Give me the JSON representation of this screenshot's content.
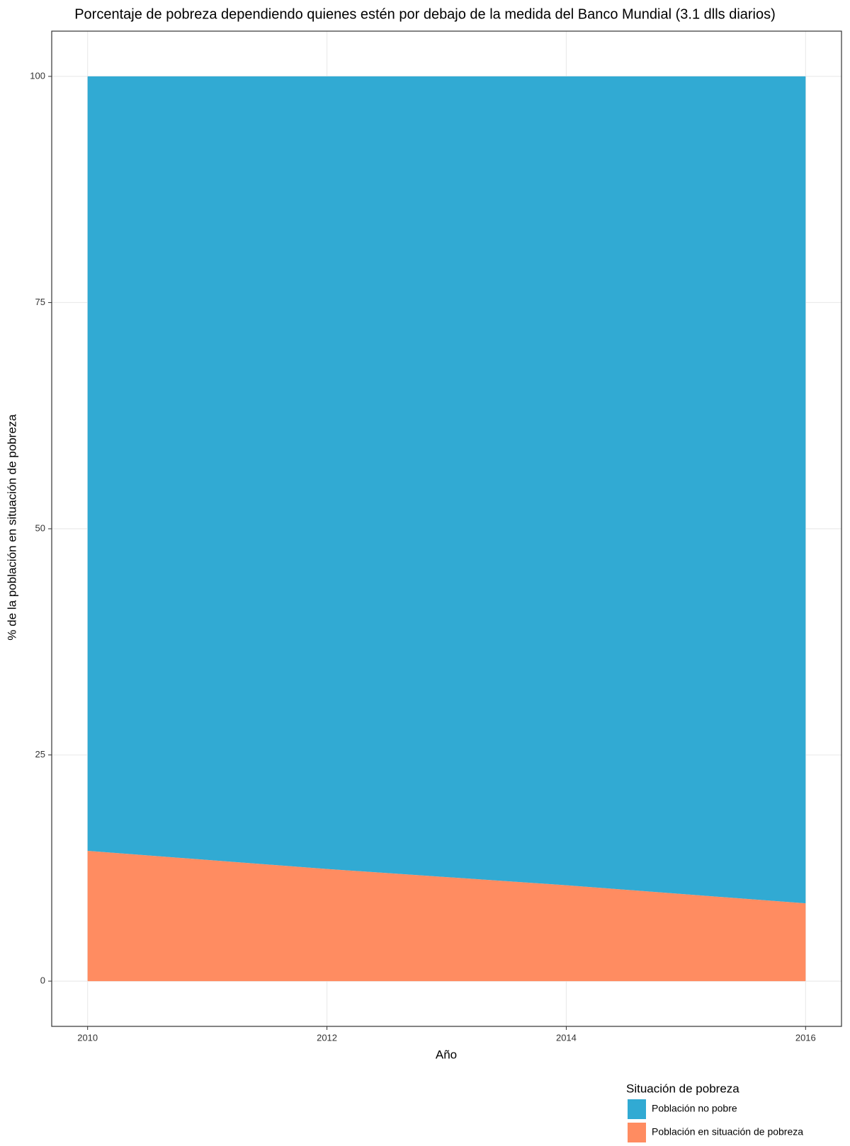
{
  "chart_data": {
    "type": "stacked_area",
    "title": "Porcentaje de pobreza dependiendo quienes estén por debajo de la medida del Banco Mundial (3.1 dlls diarios)",
    "x_label": "Año",
    "y_label": "% de la población en situación de pobreza",
    "legend_title": "Situación de pobreza",
    "x": [
      2010,
      2012,
      2014,
      2016
    ],
    "series": [
      {
        "name": "Población no pobre",
        "color": "#31aad3",
        "values": [
          85.6,
          87.6,
          89.4,
          91.4
        ]
      },
      {
        "name": "Población en situación de pobreza",
        "color": "#ff8c61",
        "values": [
          14.4,
          12.4,
          10.6,
          8.6
        ]
      }
    ],
    "xlim": [
      2009.7,
      2016.3
    ],
    "xticks": [
      2010,
      2012,
      2014,
      2016
    ],
    "ylim": [
      -5,
      105
    ],
    "yticks": [
      0,
      25,
      50,
      75,
      100
    ],
    "grid": true,
    "legend_position": "bottom-right"
  }
}
